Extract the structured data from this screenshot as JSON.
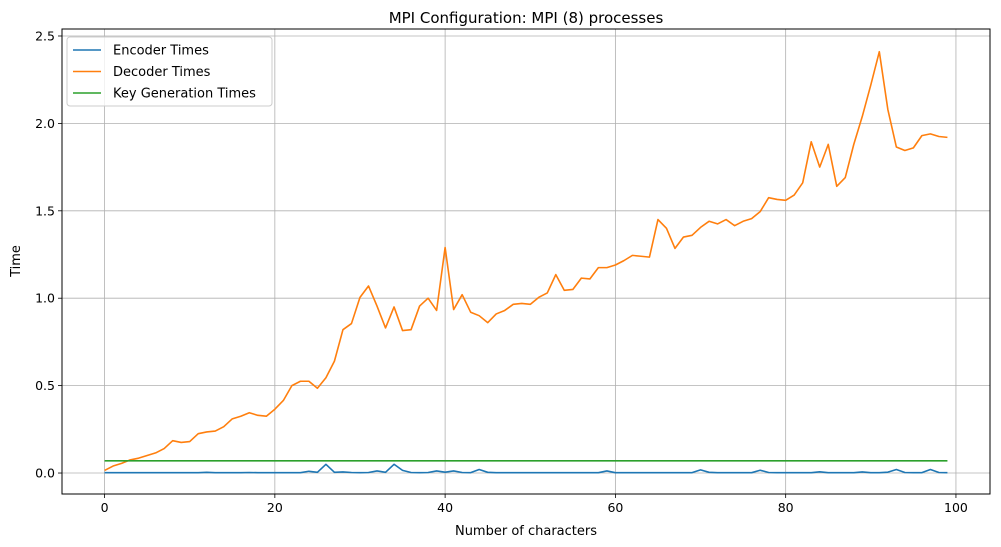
{
  "chart_data": {
    "type": "line",
    "title": "MPI Configuration: MPI (8) processes",
    "xlabel": "Number of characters",
    "ylabel": "Time",
    "xlim": [
      -5,
      104
    ],
    "ylim": [
      -0.12,
      2.54
    ],
    "xticks": [
      0,
      20,
      40,
      60,
      80,
      100
    ],
    "yticks": [
      0.0,
      0.5,
      1.0,
      1.5,
      2.0,
      2.5
    ],
    "xtick_labels": [
      "0",
      "20",
      "40",
      "60",
      "80",
      "100"
    ],
    "ytick_labels": [
      "0.0",
      "0.5",
      "1.0",
      "1.5",
      "2.0",
      "2.5"
    ],
    "grid": true,
    "legend_position": "top-left",
    "x_start": 0,
    "x_step": 1,
    "series": [
      {
        "name": "Encoder Times",
        "color": "#1f77b4",
        "values": [
          0.002,
          0.002,
          0.002,
          0.002,
          0.002,
          0.002,
          0.002,
          0.002,
          0.002,
          0.002,
          0.002,
          0.002,
          0.004,
          0.002,
          0.002,
          0.002,
          0.002,
          0.003,
          0.002,
          0.002,
          0.002,
          0.002,
          0.002,
          0.002,
          0.01,
          0.004,
          0.05,
          0.004,
          0.006,
          0.003,
          0.002,
          0.003,
          0.012,
          0.004,
          0.05,
          0.015,
          0.003,
          0.002,
          0.003,
          0.012,
          0.005,
          0.012,
          0.003,
          0.002,
          0.02,
          0.004,
          0.002,
          0.002,
          0.002,
          0.002,
          0.002,
          0.002,
          0.002,
          0.002,
          0.002,
          0.002,
          0.002,
          0.002,
          0.002,
          0.012,
          0.002,
          0.002,
          0.002,
          0.002,
          0.002,
          0.002,
          0.002,
          0.002,
          0.002,
          0.002,
          0.018,
          0.004,
          0.002,
          0.002,
          0.002,
          0.002,
          0.002,
          0.016,
          0.003,
          0.002,
          0.002,
          0.002,
          0.002,
          0.002,
          0.007,
          0.002,
          0.002,
          0.002,
          0.002,
          0.006,
          0.002,
          0.002,
          0.005,
          0.02,
          0.003,
          0.002,
          0.002,
          0.02,
          0.003,
          0.002
        ]
      },
      {
        "name": "Decoder Times",
        "color": "#ff7f0e",
        "values": [
          0.015,
          0.04,
          0.055,
          0.075,
          0.085,
          0.1,
          0.115,
          0.14,
          0.185,
          0.175,
          0.18,
          0.225,
          0.235,
          0.24,
          0.265,
          0.31,
          0.325,
          0.345,
          0.33,
          0.325,
          0.365,
          0.415,
          0.5,
          0.525,
          0.525,
          0.485,
          0.545,
          0.64,
          0.82,
          0.855,
          1.005,
          1.07,
          0.955,
          0.83,
          0.95,
          0.815,
          0.82,
          0.955,
          1.0,
          0.93,
          1.29,
          0.935,
          1.02,
          0.92,
          0.9,
          0.86,
          0.91,
          0.93,
          0.965,
          0.97,
          0.965,
          1.005,
          1.03,
          1.135,
          1.045,
          1.05,
          1.115,
          1.11,
          1.175,
          1.175,
          1.19,
          1.215,
          1.245,
          1.24,
          1.235,
          1.45,
          1.4,
          1.285,
          1.35,
          1.36,
          1.405,
          1.44,
          1.425,
          1.45,
          1.415,
          1.44,
          1.455,
          1.495,
          1.575,
          1.565,
          1.56,
          1.59,
          1.66,
          1.895,
          1.75,
          1.88,
          1.64,
          1.69,
          1.88,
          2.04,
          2.22,
          2.41,
          2.08,
          1.865,
          1.845,
          1.86,
          1.93,
          1.94,
          1.925,
          1.92
        ]
      },
      {
        "name": "Key Generation Times",
        "color": "#2ca02c",
        "values": [
          0.07,
          0.07,
          0.07,
          0.07,
          0.07,
          0.07,
          0.07,
          0.07,
          0.07,
          0.07,
          0.07,
          0.07,
          0.07,
          0.07,
          0.07,
          0.07,
          0.07,
          0.07,
          0.07,
          0.07,
          0.07,
          0.07,
          0.07,
          0.07,
          0.07,
          0.07,
          0.07,
          0.07,
          0.07,
          0.07,
          0.07,
          0.07,
          0.07,
          0.07,
          0.07,
          0.07,
          0.07,
          0.07,
          0.07,
          0.07,
          0.07,
          0.07,
          0.07,
          0.07,
          0.07,
          0.07,
          0.07,
          0.07,
          0.07,
          0.07,
          0.07,
          0.07,
          0.07,
          0.07,
          0.07,
          0.07,
          0.07,
          0.07,
          0.07,
          0.07,
          0.07,
          0.07,
          0.07,
          0.07,
          0.07,
          0.07,
          0.07,
          0.07,
          0.07,
          0.07,
          0.07,
          0.07,
          0.07,
          0.07,
          0.07,
          0.07,
          0.07,
          0.07,
          0.07,
          0.07,
          0.07,
          0.07,
          0.07,
          0.07,
          0.07,
          0.07,
          0.07,
          0.07,
          0.07,
          0.07,
          0.07,
          0.07,
          0.07,
          0.07,
          0.07,
          0.07,
          0.07,
          0.07,
          0.07,
          0.07
        ]
      }
    ]
  }
}
